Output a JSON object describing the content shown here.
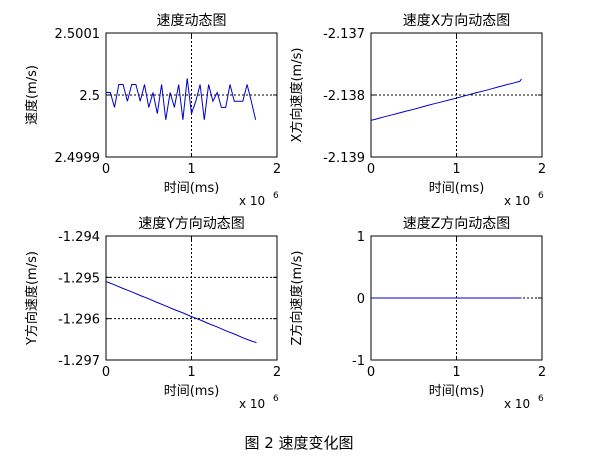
{
  "figure_caption": "图 2  速度变化图",
  "chart_data": [
    {
      "type": "line",
      "title": "速度动态图",
      "xlabel": "时间(ms)",
      "ylabel": "速度(m/s)",
      "x_multiplier": "x 10",
      "x_exponent": "6",
      "xlim": [
        0,
        2
      ],
      "ylim": [
        2.4999,
        2.5001
      ],
      "xticks": [
        "0",
        "1",
        "2"
      ],
      "yticks": [
        {
          "value": 2.4999,
          "label": "2.4999"
        },
        {
          "value": 2.5,
          "label": "2.5"
        },
        {
          "value": 2.5001,
          "label": "2.5001"
        }
      ],
      "grid": "dotted-center",
      "color": "#0000cc",
      "series": [
        {
          "x": [
            0,
            0.05,
            0.1,
            0.15,
            0.2,
            0.25,
            0.3,
            0.35,
            0.4,
            0.45,
            0.5,
            0.55,
            0.6,
            0.65,
            0.7,
            0.75,
            0.8,
            0.85,
            0.9,
            0.95,
            1.0,
            1.05,
            1.1,
            1.15,
            1.2,
            1.25,
            1.3,
            1.35,
            1.4,
            1.45,
            1.5,
            1.55,
            1.6,
            1.65,
            1.7,
            1.75
          ],
          "values": [
            2.500004,
            2.500004,
            2.49998,
            2.500017,
            2.500017,
            2.49999,
            2.500017,
            2.500017,
            2.49999,
            2.500017,
            2.49998,
            2.500004,
            2.49997,
            2.500017,
            2.49996,
            2.500004,
            2.49998,
            2.500017,
            2.49996,
            2.500027,
            2.49997,
            2.49999,
            2.500017,
            2.49996,
            2.500017,
            2.49999,
            2.500004,
            2.49998,
            2.49998,
            2.500017,
            2.49999,
            2.49999,
            2.49999,
            2.500017,
            2.49999,
            2.49996
          ]
        }
      ]
    },
    {
      "type": "line",
      "title": "速度X方向动态图",
      "xlabel": "时间(ms)",
      "ylabel": "X方向速度(m/s)",
      "x_multiplier": "x 10",
      "x_exponent": "6",
      "xlim": [
        0,
        2
      ],
      "ylim": [
        -2.139,
        -2.137
      ],
      "xticks": [
        "0",
        "1",
        "2"
      ],
      "yticks": [
        {
          "value": -2.139,
          "label": "-2.139"
        },
        {
          "value": -2.138,
          "label": "-2.138"
        },
        {
          "value": -2.137,
          "label": "-2.137"
        }
      ],
      "grid": "dotted-center",
      "color": "#0000cc",
      "series": [
        {
          "x": [
            0,
            0.08,
            0.16,
            0.25,
            0.33,
            0.41,
            0.5,
            0.58,
            0.66,
            0.74,
            0.83,
            0.91,
            1.0,
            1.08,
            1.16,
            1.24,
            1.33,
            1.41,
            1.49,
            1.57,
            1.66,
            1.74,
            1.76
          ],
          "values": [
            -2.13841,
            -2.13838,
            -2.13835,
            -2.13832,
            -2.13829,
            -2.13826,
            -2.13823,
            -2.1382,
            -2.13817,
            -2.13814,
            -2.13811,
            -2.13808,
            -2.13805,
            -2.13802,
            -2.13799,
            -2.13796,
            -2.13793,
            -2.1379,
            -2.13787,
            -2.13784,
            -2.13781,
            -2.13778,
            -2.13774
          ]
        }
      ]
    },
    {
      "type": "line",
      "title": "速度Y方向动态图",
      "xlabel": "时间(ms)",
      "ylabel": "Y方向速度(m/s)",
      "x_multiplier": "x 10",
      "x_exponent": "6",
      "xlim": [
        0,
        2
      ],
      "ylim": [
        -1.297,
        -1.294
      ],
      "xticks": [
        "0",
        "1",
        "2"
      ],
      "yticks": [
        {
          "value": -1.297,
          "label": "-1.297"
        },
        {
          "value": -1.296,
          "label": "-1.296"
        },
        {
          "value": -1.295,
          "label": "-1.295"
        },
        {
          "value": -1.294,
          "label": "-1.294"
        }
      ],
      "grid": "dotted-center",
      "color": "#0000cc",
      "series": [
        {
          "x": [
            0,
            0.1,
            0.2,
            0.3,
            0.4,
            0.5,
            0.6,
            0.7,
            0.8,
            0.9,
            1.0,
            1.1,
            1.2,
            1.3,
            1.4,
            1.5,
            1.6,
            1.7,
            1.76
          ],
          "values": [
            -1.2951,
            -1.29518,
            -1.29527,
            -1.29535,
            -1.29544,
            -1.29552,
            -1.29561,
            -1.29569,
            -1.29578,
            -1.29586,
            -1.29595,
            -1.29603,
            -1.29612,
            -1.2962,
            -1.29629,
            -1.29637,
            -1.29646,
            -1.29654,
            -1.29658
          ]
        }
      ]
    },
    {
      "type": "line",
      "title": "速度Z方向动态图",
      "xlabel": "时间(ms)",
      "ylabel": "Z方向速度(m/s)",
      "x_multiplier": "x 10",
      "x_exponent": "6",
      "xlim": [
        0,
        2
      ],
      "ylim": [
        -1,
        1
      ],
      "xticks": [
        "0",
        "1",
        "2"
      ],
      "yticks": [
        {
          "value": -1,
          "label": "-1"
        },
        {
          "value": 0,
          "label": "0"
        },
        {
          "value": 1,
          "label": "1"
        }
      ],
      "grid": "dotted-center",
      "color": "#0000cc",
      "series": [
        {
          "x": [
            0,
            1.76
          ],
          "values": [
            0,
            0
          ]
        }
      ]
    }
  ]
}
